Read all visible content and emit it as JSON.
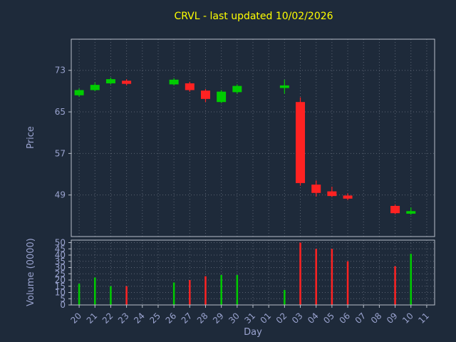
{
  "chart_data": {
    "type": "candlestick",
    "title": "CRVL - last updated 10/02/2026",
    "xlabel": "Day",
    "price_ylabel": "Price",
    "volume_ylabel": "Volume (0000)",
    "categories": [
      "20",
      "21",
      "22",
      "23",
      "24",
      "25",
      "26",
      "27",
      "28",
      "29",
      "30",
      "31",
      "01",
      "02",
      "03",
      "04",
      "05",
      "06",
      "07",
      "08",
      "09",
      "10",
      "11"
    ],
    "price_ticks": [
      73,
      65,
      57,
      49
    ],
    "price_ylim": [
      41,
      79
    ],
    "volume_ticks": [
      50,
      45,
      40,
      35,
      30,
      25,
      20,
      15,
      10,
      5,
      0
    ],
    "volume_ylim": [
      0,
      52
    ],
    "grid": "dotted",
    "legend": "none",
    "candles": [
      {
        "day": "20",
        "open": 68.2,
        "high": 69.5,
        "low": 67.9,
        "close": 69.2,
        "volume": 17
      },
      {
        "day": "21",
        "open": 69.2,
        "high": 70.6,
        "low": 69.0,
        "close": 70.2,
        "volume": 22
      },
      {
        "day": "22",
        "open": 70.5,
        "high": 71.6,
        "low": 70.3,
        "close": 71.3,
        "volume": 15
      },
      {
        "day": "23",
        "open": 71.0,
        "high": 71.3,
        "low": 70.1,
        "close": 70.4,
        "volume": 15
      },
      {
        "day": "26",
        "open": 70.3,
        "high": 71.5,
        "low": 70.1,
        "close": 71.2,
        "volume": 18
      },
      {
        "day": "27",
        "open": 70.5,
        "high": 70.8,
        "low": 68.9,
        "close": 69.2,
        "volume": 20
      },
      {
        "day": "28",
        "open": 69.1,
        "high": 69.4,
        "low": 66.9,
        "close": 67.5,
        "volume": 23
      },
      {
        "day": "29",
        "open": 66.9,
        "high": 69.2,
        "low": 66.7,
        "close": 68.9,
        "volume": 24
      },
      {
        "day": "30",
        "open": 68.8,
        "high": 70.3,
        "low": 68.5,
        "close": 70.0,
        "volume": 24
      },
      {
        "day": "02",
        "open": 69.6,
        "high": 71.2,
        "low": 68.5,
        "close": 70.1,
        "volume": 12
      },
      {
        "day": "03",
        "open": 66.9,
        "high": 67.8,
        "low": 50.8,
        "close": 51.3,
        "volume": 50
      },
      {
        "day": "04",
        "open": 51.0,
        "high": 51.8,
        "low": 48.7,
        "close": 49.4,
        "volume": 45
      },
      {
        "day": "05",
        "open": 49.7,
        "high": 50.6,
        "low": 48.6,
        "close": 48.8,
        "volume": 45
      },
      {
        "day": "06",
        "open": 48.9,
        "high": 49.3,
        "low": 48.0,
        "close": 48.3,
        "volume": 35
      },
      {
        "day": "09",
        "open": 46.9,
        "high": 47.2,
        "low": 45.3,
        "close": 45.5,
        "volume": 31
      },
      {
        "day": "10",
        "open": 45.4,
        "high": 46.6,
        "low": 45.2,
        "close": 45.9,
        "volume": 41
      }
    ]
  },
  "colors": {
    "background": "#1e2a3a",
    "title": "#ffff00",
    "axis_text": "#9aa3cf",
    "grid": "#5a6372",
    "spine": "#b8bfca",
    "up": "#00cc00",
    "down": "#ff2222"
  }
}
